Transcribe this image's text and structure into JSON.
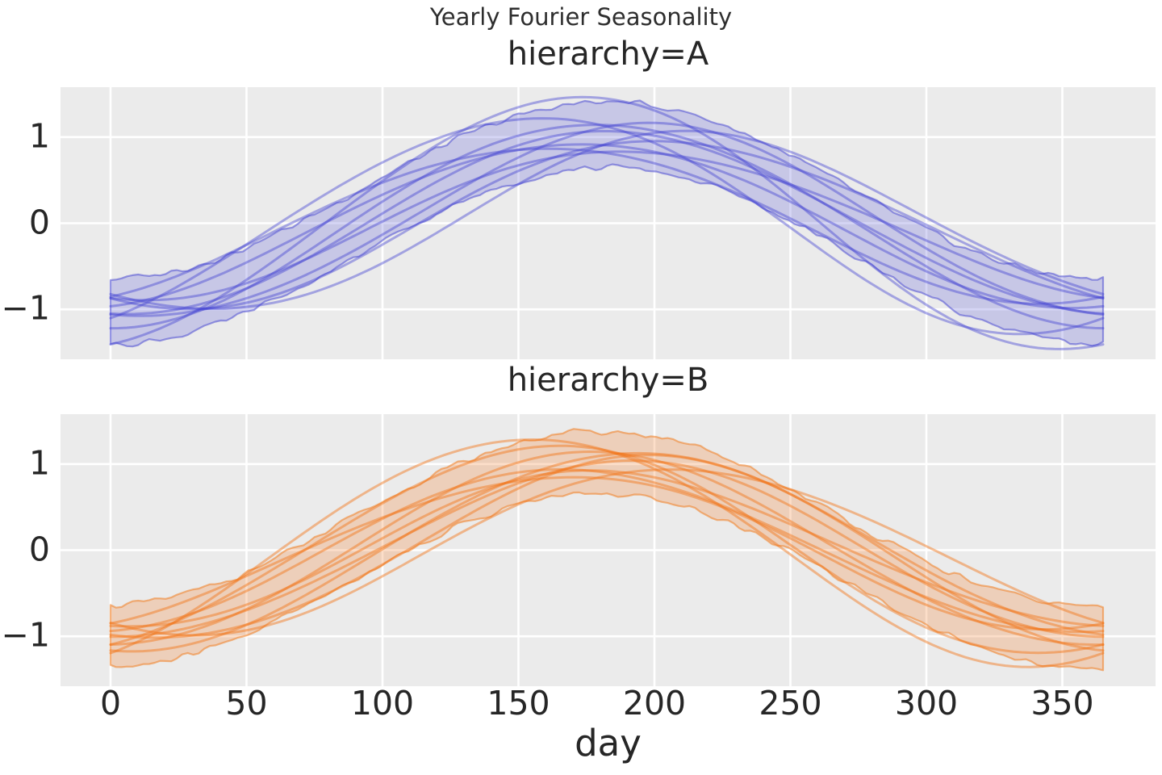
{
  "figure": {
    "title": "Yearly Fourier Seasonality"
  },
  "style": {
    "axes_background": "#ebebeb",
    "grid_color": "#ffffff",
    "text_color": "#262626",
    "figure_background": "#ffffff"
  },
  "x_axis": {
    "label": "day",
    "ticks": [
      "0",
      "50",
      "100",
      "150",
      "200",
      "250",
      "300",
      "350"
    ],
    "tick_values": [
      0,
      50,
      100,
      150,
      200,
      250,
      300,
      350
    ],
    "range": [
      0,
      365
    ]
  },
  "y_axis": {
    "ticks": [
      "1",
      "0",
      "−1"
    ],
    "tick_values": [
      1,
      0,
      -1
    ],
    "range": [
      -1.58,
      1.58
    ]
  },
  "chart_data": [
    {
      "type": "line",
      "facet": "hierarchy=A",
      "description": "Posterior sample seasonality curves (cosine with yearly period, day of peak and amplitude per sample) plus a jagged uncertainty envelope band",
      "period_days": 365,
      "line_color": "#3d3dd2",
      "line_opacity": 0.42,
      "line_width": 3,
      "band_fill_color": "#5a5ad8",
      "band_fill_opacity": 0.25,
      "band_edge_color": "#4c4cd2",
      "band_edge_opacity": 0.55,
      "curves": [
        {
          "peak_day": 170,
          "amplitude": 1.46,
          "h2_sin": 0.04,
          "h2_cos": 0.02
        },
        {
          "peak_day": 185,
          "amplitude": 1.06,
          "h2_sin": -0.03,
          "h2_cos": 0.01
        },
        {
          "peak_day": 172,
          "amplitude": 0.95,
          "h2_sin": 0.02,
          "h2_cos": -0.03
        },
        {
          "peak_day": 196,
          "amplitude": 1.12,
          "h2_sin": 0.04,
          "h2_cos": 0.03
        },
        {
          "peak_day": 206,
          "amplitude": 0.97,
          "h2_sin": -0.05,
          "h2_cos": 0.02
        },
        {
          "peak_day": 160,
          "amplitude": 0.9,
          "h2_sin": 0.03,
          "h2_cos": -0.02
        },
        {
          "peak_day": 215,
          "amplitude": 1.03,
          "h2_sin": 0.02,
          "h2_cos": 0.05
        },
        {
          "peak_day": 181,
          "amplitude": 1.18,
          "h2_sin": -0.02,
          "h2_cos": -0.04
        },
        {
          "peak_day": 155,
          "amplitude": 1.25,
          "h2_sin": 0.05,
          "h2_cos": 0.01
        },
        {
          "peak_day": 192,
          "amplitude": 0.86,
          "h2_sin": -0.04,
          "h2_cos": -0.02
        }
      ],
      "band": {
        "kind": "uncertainty-envelope",
        "half_width": 0.38,
        "noise_amplitude": 0.05,
        "seed": 3
      }
    },
    {
      "type": "line",
      "facet": "hierarchy=B",
      "description": "Posterior sample seasonality curves (cosine with yearly period, day of peak and amplitude per sample) plus a jagged uncertainty envelope band",
      "period_days": 365,
      "line_color": "#f27211",
      "line_opacity": 0.45,
      "line_width": 3,
      "band_fill_color": "#f58a3c",
      "band_fill_opacity": 0.28,
      "band_edge_color": "#f07d20",
      "band_edge_opacity": 0.55,
      "curves": [
        {
          "peak_day": 155,
          "amplitude": 1.32,
          "h2_sin": 0.03,
          "h2_cos": -0.02
        },
        {
          "peak_day": 178,
          "amplitude": 1.12,
          "h2_sin": -0.02,
          "h2_cos": 0.02
        },
        {
          "peak_day": 188,
          "amplitude": 1.02,
          "h2_sin": 0.04,
          "h2_cos": 0.01
        },
        {
          "peak_day": 170,
          "amplitude": 0.94,
          "h2_sin": -0.03,
          "h2_cos": -0.02
        },
        {
          "peak_day": 198,
          "amplitude": 1.06,
          "h2_sin": 0.02,
          "h2_cos": 0.04
        },
        {
          "peak_day": 210,
          "amplitude": 0.96,
          "h2_sin": -0.04,
          "h2_cos": 0.01
        },
        {
          "peak_day": 165,
          "amplitude": 0.88,
          "h2_sin": 0.05,
          "h2_cos": -0.01
        },
        {
          "peak_day": 192,
          "amplitude": 1.15,
          "h2_sin": 0.01,
          "h2_cos": -0.03
        },
        {
          "peak_day": 182,
          "amplitude": 0.9,
          "h2_sin": -0.05,
          "h2_cos": 0.02
        },
        {
          "peak_day": 162,
          "amplitude": 1.2,
          "h2_sin": 0.02,
          "h2_cos": 0.03
        }
      ],
      "band": {
        "kind": "uncertainty-envelope",
        "half_width": 0.36,
        "noise_amplitude": 0.05,
        "seed": 11
      }
    }
  ]
}
